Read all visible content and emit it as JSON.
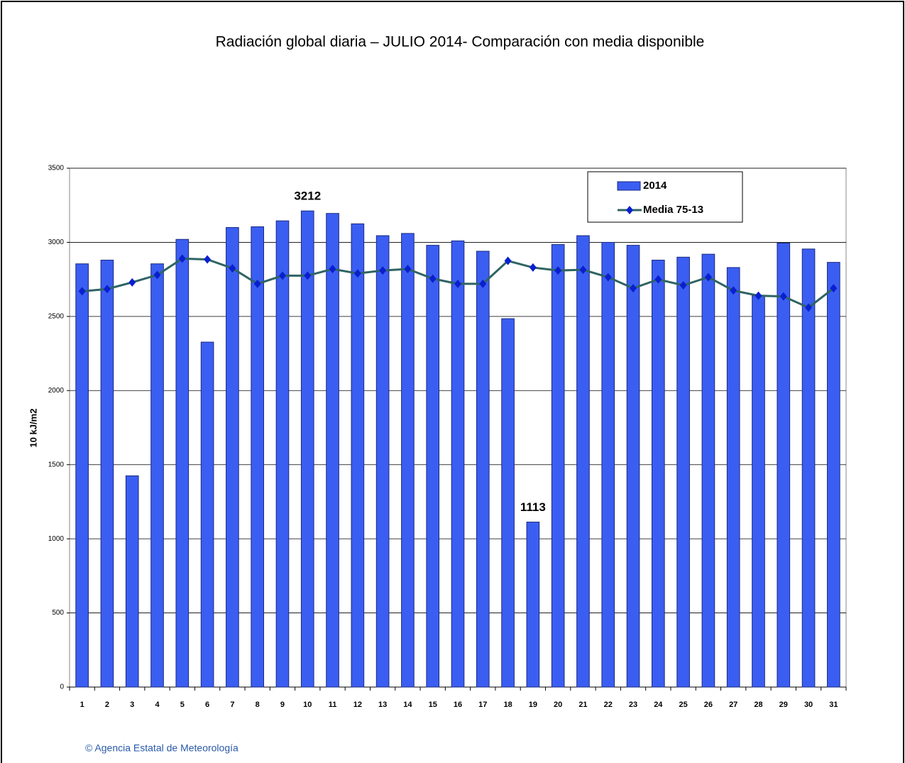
{
  "chart_data": {
    "type": "bar",
    "title": "Radiación global diaria –  JULIO 2014- Comparación con media disponible",
    "y_label": "10 kJ/m2",
    "footer": "© Agencia Estatal de Meteorología",
    "categories": [
      "1",
      "2",
      "3",
      "4",
      "5",
      "6",
      "7",
      "8",
      "9",
      "10",
      "11",
      "12",
      "13",
      "14",
      "15",
      "16",
      "17",
      "18",
      "19",
      "20",
      "21",
      "22",
      "23",
      "24",
      "25",
      "26",
      "27",
      "28",
      "29",
      "30",
      "31"
    ],
    "series": [
      {
        "name": "2014",
        "type": "bar",
        "color": "#3b5ef2",
        "values": [
          2855,
          2880,
          1425,
          2855,
          3020,
          2327,
          3100,
          3105,
          3145,
          3212,
          3195,
          3125,
          3045,
          3060,
          2980,
          3010,
          2940,
          2485,
          1113,
          2985,
          3045,
          3000,
          2980,
          2880,
          2900,
          2920,
          2830,
          2640,
          2995,
          2955,
          2865
        ]
      },
      {
        "name": "Media 75-13",
        "type": "line",
        "color": "#2f6464",
        "marker_color": "#0a1fd0",
        "values": [
          2670,
          2685,
          2730,
          2780,
          2890,
          2885,
          2825,
          2720,
          2775,
          2775,
          2820,
          2790,
          2810,
          2820,
          2755,
          2720,
          2720,
          2875,
          2830,
          2810,
          2815,
          2765,
          2690,
          2750,
          2710,
          2765,
          2675,
          2640,
          2635,
          2560,
          2690
        ]
      }
    ],
    "labeled_categories": [
      "10",
      "19"
    ],
    "ylim": [
      0,
      3500
    ],
    "yticks": [
      0,
      500,
      1000,
      1500,
      2000,
      2500,
      3000,
      3500
    ],
    "grid": true,
    "legend": "upper right"
  }
}
